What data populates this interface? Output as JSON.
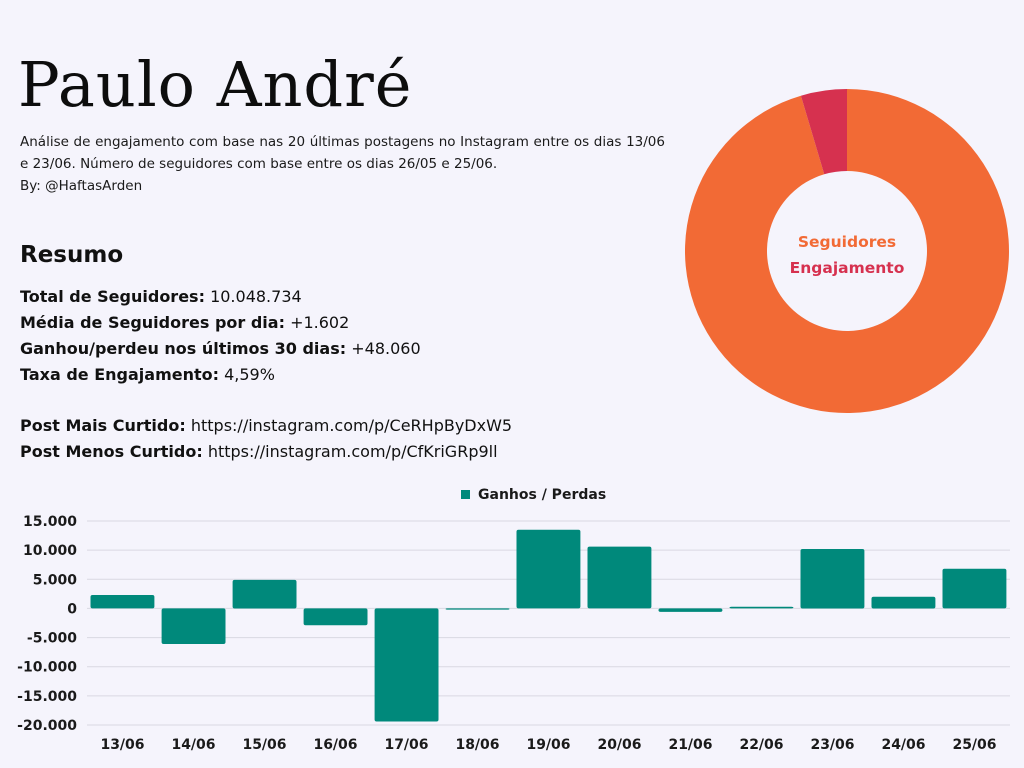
{
  "header": {
    "title": "Paulo André",
    "subtitle": "Análise de engajamento com base nas 20 últimas postagens no Instagram entre os dias 13/06 e 23/06. Número de seguidores com base entre os dias 26/05 e 25/06.",
    "byline": "By: @HaftasArden"
  },
  "summary": {
    "title": "Resumo",
    "stats": [
      {
        "label": "Total de Seguidores:",
        "value": "10.048.734"
      },
      {
        "label": "Média de Seguidores por dia:",
        "value": "+1.602"
      },
      {
        "label": "Ganhou/perdeu nos últimos 30 dias:",
        "value": "+48.060"
      },
      {
        "label": "Taxa de Engajamento:",
        "value": "4,59%"
      }
    ],
    "posts": [
      {
        "label": "Post Mais Curtido:",
        "value": "https://instagram.com/p/CeRHpByDxW5"
      },
      {
        "label": "Post Menos Curtido:",
        "value": "https://instagram.com/p/CfKriGRp9ll"
      }
    ]
  },
  "chart_data": [
    {
      "type": "pie",
      "labels": [
        "Seguidores",
        "Engajamento"
      ],
      "values": [
        95.41,
        4.59
      ],
      "colors": [
        "#f26a35",
        "#d6314f"
      ],
      "donut": true,
      "center_labels": [
        "Seguidores",
        "Engajamento"
      ]
    },
    {
      "type": "bar",
      "categories": [
        "13/06",
        "14/06",
        "15/06",
        "16/06",
        "17/06",
        "18/06",
        "19/06",
        "20/06",
        "21/06",
        "22/06",
        "23/06",
        "24/06",
        "25/06"
      ],
      "series": [
        {
          "name": "Ganhos / Perdas",
          "values": [
            2300,
            -6100,
            4900,
            -2900,
            -19400,
            -150,
            13500,
            10600,
            -600,
            300,
            10200,
            2000,
            6800
          ],
          "color": "#00897b"
        }
      ],
      "yticks": [
        "15.000",
        "10.000",
        "5.000",
        "0",
        "-5.000",
        "-10.000",
        "-15.000",
        "-20.000"
      ],
      "ylim": [
        -20000,
        15000
      ],
      "grid": true,
      "legend": "top-center"
    }
  ]
}
